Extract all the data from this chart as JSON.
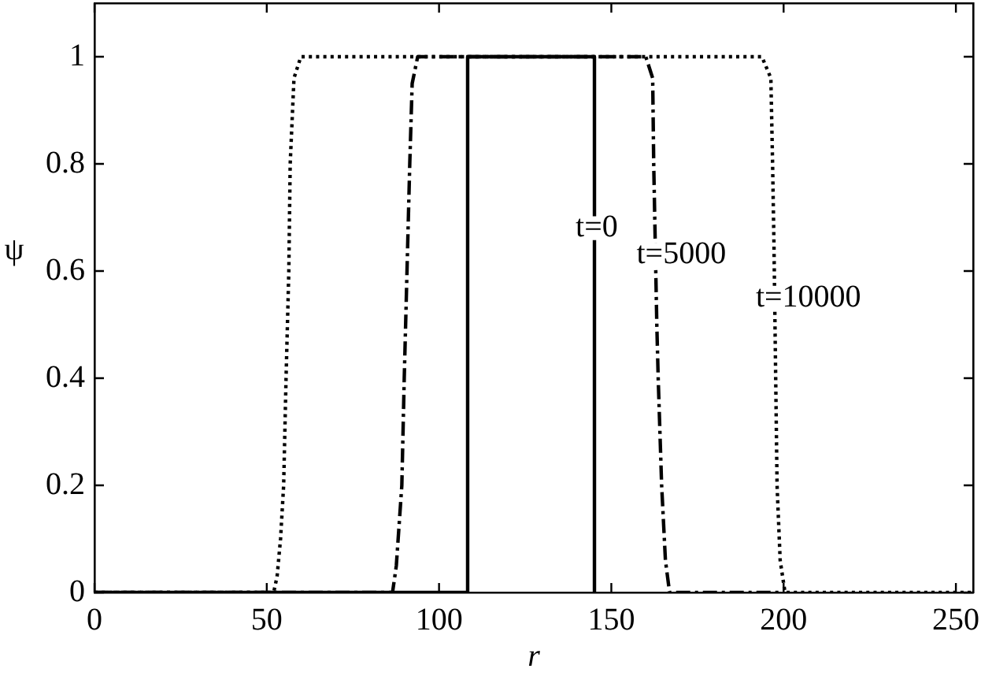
{
  "chart_data": {
    "type": "line",
    "xlabel": "r",
    "ylabel": "ψ",
    "xlim": [
      0,
      255
    ],
    "xticks": [
      0,
      50,
      100,
      150,
      200,
      250
    ],
    "ylim": [
      0,
      1.1
    ],
    "yticks": [
      0,
      0.2,
      0.4,
      0.6,
      0.8,
      1
    ],
    "series": [
      {
        "color": "#000000",
        "line_style": "solid",
        "x": [
          0,
          108.3,
          108.3,
          145.1,
          145.1
        ],
        "values": [
          0,
          0,
          1,
          1,
          0
        ]
      },
      {
        "color": "#000000",
        "line_style": "dashdot",
        "x": [
          0,
          86.5,
          87.6,
          89.2,
          89.9,
          90.7,
          91.5,
          92.2,
          93.8,
          160,
          162,
          162.3,
          162.6,
          163.2,
          163.6,
          164.6,
          165.7,
          166.9,
          200
        ],
        "values": [
          0,
          0,
          0.05,
          0.2,
          0.4,
          0.6,
          0.8,
          0.95,
          1,
          1,
          0.96,
          0.8,
          0.7,
          0.5,
          0.4,
          0.2,
          0.06,
          0,
          0
        ]
      },
      {
        "color": "#000000",
        "line_style": "dotted",
        "x": [
          0,
          52,
          53,
          54,
          54.9,
          55.6,
          56.4,
          56.8,
          57.9,
          59.9,
          193.7,
          196.3,
          196.8,
          197.2,
          197.5,
          197.7,
          198.1,
          199,
          200.4,
          255
        ],
        "values": [
          0,
          0,
          0.03,
          0.1,
          0.2,
          0.4,
          0.6,
          0.8,
          0.96,
          1,
          1,
          0.96,
          0.8,
          0.65,
          0.5,
          0.4,
          0.2,
          0.06,
          0,
          0
        ]
      }
    ],
    "annotations": [
      {
        "text": "t=0",
        "x": 145.1,
        "y": 0.68
      },
      {
        "text": "t=5000",
        "x": 162.8,
        "y": 0.63
      },
      {
        "text": "t=10000",
        "x": 197.4,
        "y": 0.55
      }
    ]
  }
}
